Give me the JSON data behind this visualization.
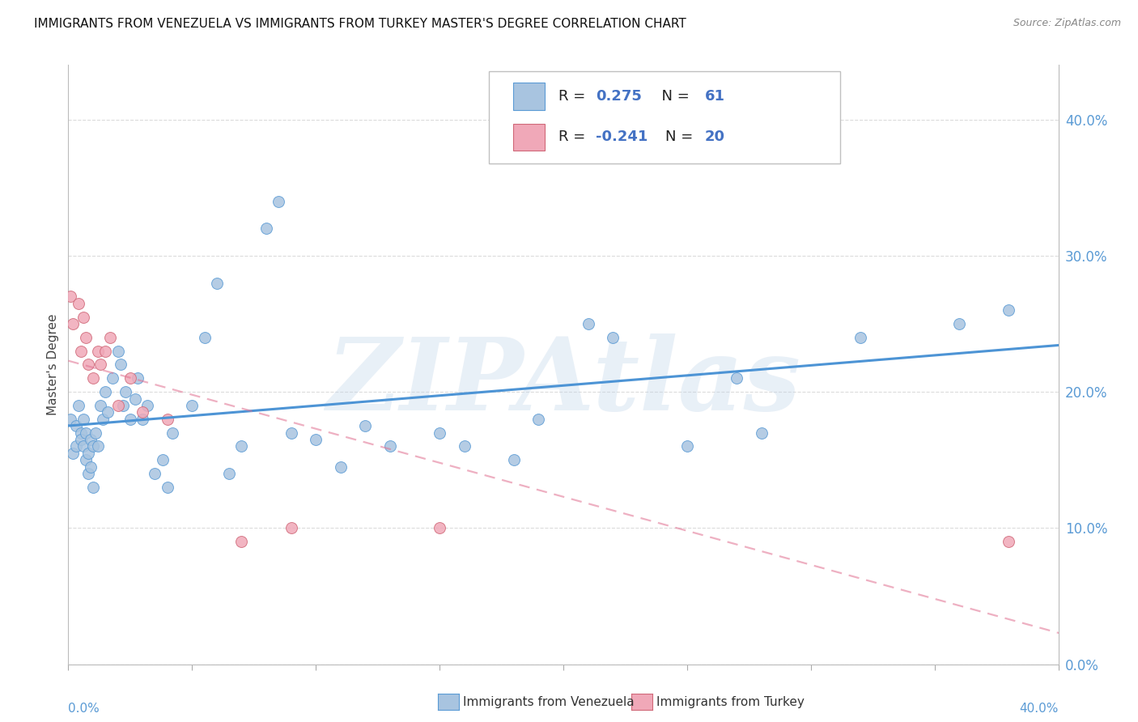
{
  "title": "IMMIGRANTS FROM VENEZUELA VS IMMIGRANTS FROM TURKEY MASTER'S DEGREE CORRELATION CHART",
  "source": "Source: ZipAtlas.com",
  "ylabel": "Master's Degree",
  "xlim": [
    0.0,
    0.4
  ],
  "ylim": [
    0.0,
    0.44
  ],
  "yticks": [
    0.0,
    0.1,
    0.2,
    0.3,
    0.4
  ],
  "r_venezuela": 0.275,
  "n_venezuela": 61,
  "r_turkey": -0.241,
  "n_turkey": 20,
  "color_venezuela": "#a8c4e0",
  "color_turkey": "#f0a8b8",
  "edge_venezuela": "#5b9bd5",
  "edge_turkey": "#d06878",
  "trendline_venezuela": "#4d94d5",
  "trendline_turkey": "#e07090",
  "legend_text_color": "#4472c4",
  "watermark": "ZIPAtlas",
  "watermark_color": "#c5d8ea",
  "grid_color": "#cccccc",
  "tick_color": "#5b9bd5",
  "venezuela_x": [
    0.001,
    0.002,
    0.003,
    0.003,
    0.004,
    0.005,
    0.005,
    0.006,
    0.006,
    0.007,
    0.007,
    0.008,
    0.008,
    0.009,
    0.009,
    0.01,
    0.01,
    0.011,
    0.012,
    0.013,
    0.014,
    0.015,
    0.016,
    0.018,
    0.02,
    0.021,
    0.022,
    0.023,
    0.025,
    0.027,
    0.028,
    0.03,
    0.032,
    0.035,
    0.038,
    0.04,
    0.042,
    0.05,
    0.055,
    0.06,
    0.065,
    0.07,
    0.08,
    0.085,
    0.09,
    0.1,
    0.11,
    0.12,
    0.13,
    0.15,
    0.16,
    0.18,
    0.19,
    0.21,
    0.22,
    0.25,
    0.27,
    0.28,
    0.32,
    0.36,
    0.38
  ],
  "venezuela_y": [
    0.18,
    0.155,
    0.175,
    0.16,
    0.19,
    0.17,
    0.165,
    0.16,
    0.18,
    0.15,
    0.17,
    0.14,
    0.155,
    0.165,
    0.145,
    0.13,
    0.16,
    0.17,
    0.16,
    0.19,
    0.18,
    0.2,
    0.185,
    0.21,
    0.23,
    0.22,
    0.19,
    0.2,
    0.18,
    0.195,
    0.21,
    0.18,
    0.19,
    0.14,
    0.15,
    0.13,
    0.17,
    0.19,
    0.24,
    0.28,
    0.14,
    0.16,
    0.32,
    0.34,
    0.17,
    0.165,
    0.145,
    0.175,
    0.16,
    0.17,
    0.16,
    0.15,
    0.18,
    0.25,
    0.24,
    0.16,
    0.21,
    0.17,
    0.24,
    0.25,
    0.26
  ],
  "turkey_x": [
    0.001,
    0.002,
    0.004,
    0.005,
    0.006,
    0.007,
    0.008,
    0.01,
    0.012,
    0.013,
    0.015,
    0.017,
    0.02,
    0.025,
    0.03,
    0.04,
    0.07,
    0.09,
    0.15,
    0.38
  ],
  "turkey_y": [
    0.27,
    0.25,
    0.265,
    0.23,
    0.255,
    0.24,
    0.22,
    0.21,
    0.23,
    0.22,
    0.23,
    0.24,
    0.19,
    0.21,
    0.185,
    0.18,
    0.09,
    0.1,
    0.1,
    0.09
  ]
}
